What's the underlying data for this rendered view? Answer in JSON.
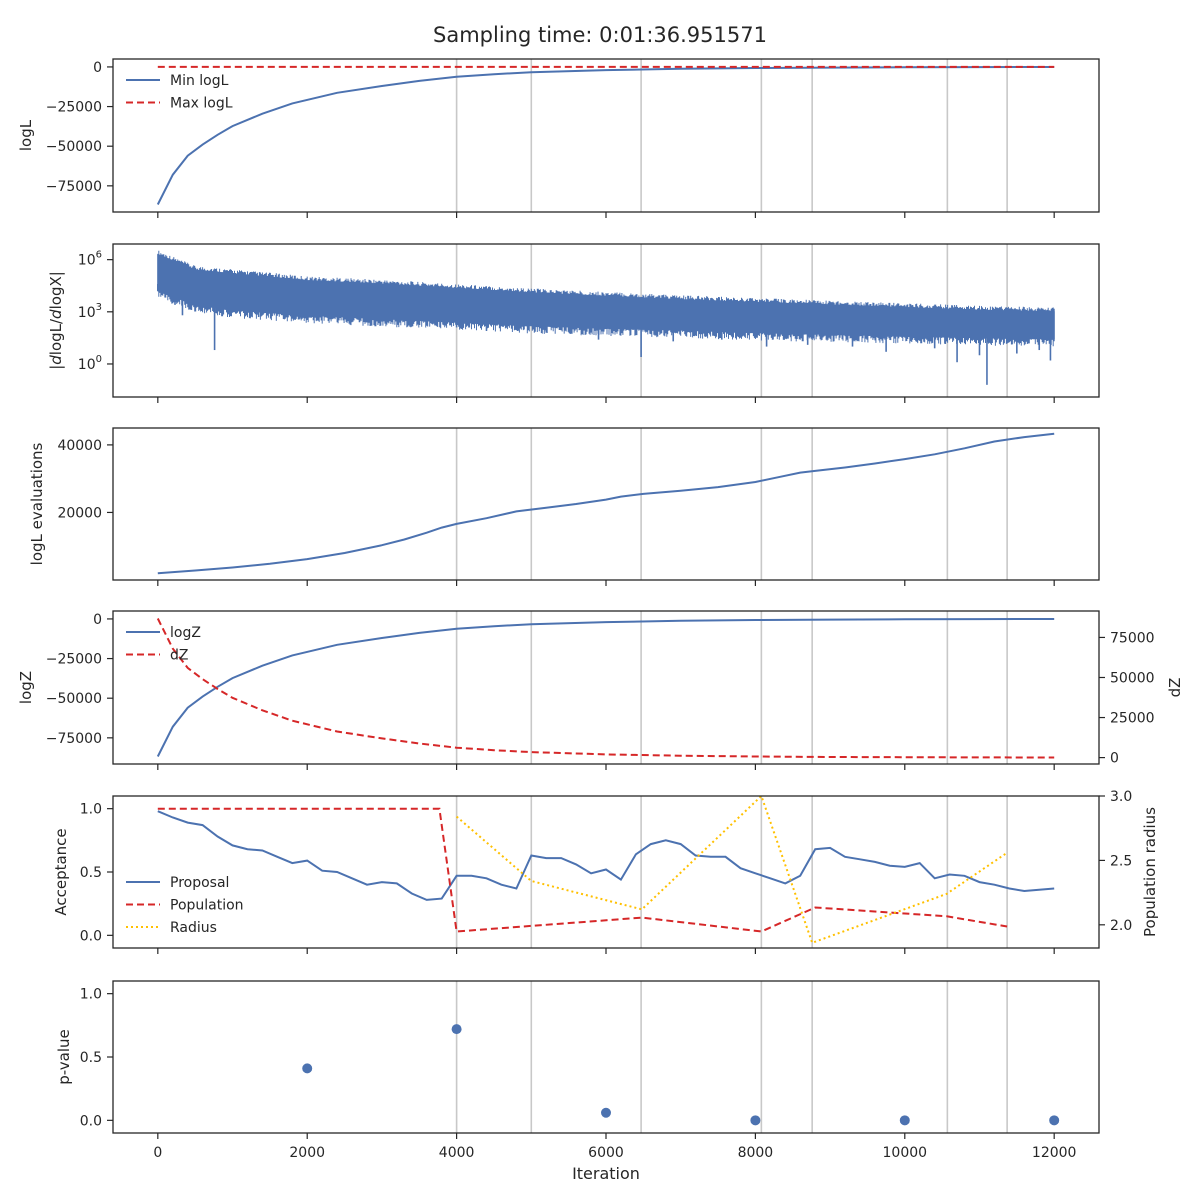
{
  "suptitle": "Sampling time: 0:01:36.951571",
  "colors": {
    "blue": "#4c72b0",
    "red": "#d62728",
    "gold": "#ffc000",
    "vline": "#c8c8c8",
    "axis": "#262626"
  },
  "x_axis": {
    "label": "Iteration",
    "range": [
      -600,
      12600
    ],
    "ticks": [
      0,
      2000,
      4000,
      6000,
      8000,
      10000,
      12000
    ],
    "tick_labels": [
      "0",
      "2000",
      "4000",
      "6000",
      "8000",
      "10000",
      "12000"
    ]
  },
  "vlines": [
    4000,
    5000,
    6470,
    8080,
    8760,
    10570,
    11370
  ],
  "chart_data": [
    {
      "type": "line",
      "id": "logl",
      "ylabel": "logL",
      "ylim": [
        -91500,
        5000
      ],
      "yticks": [
        0,
        -25000,
        -50000,
        -75000
      ],
      "ytick_labels": [
        "0",
        "−25000",
        "−50000",
        "−75000"
      ],
      "legend": {
        "position": "top-left",
        "entries": [
          "Min logL",
          "Max logL"
        ]
      },
      "series": [
        {
          "name": "Min logL",
          "style": "solid",
          "color": "blue",
          "x": [
            0,
            200,
            400,
            600,
            800,
            1000,
            1400,
            1800,
            2400,
            3000,
            3500,
            4000,
            4500,
            5000,
            6000,
            7000,
            8000,
            9000,
            10000,
            11000,
            12000
          ],
          "y": [
            -86800,
            -68000,
            -56000,
            -49000,
            -42800,
            -37300,
            -29500,
            -23000,
            -16300,
            -12000,
            -8800,
            -6200,
            -4600,
            -3400,
            -2000,
            -1200,
            -700,
            -400,
            -230,
            -120,
            -50
          ]
        },
        {
          "name": "Max logL",
          "style": "dashed",
          "color": "red",
          "x": [
            0,
            12000
          ],
          "y": [
            0,
            0
          ]
        }
      ]
    },
    {
      "type": "line",
      "id": "dlogl",
      "ylabel": "|dlogL/dlogX|",
      "yscale": "log",
      "ylim_log10": [
        -1.9,
        6.9
      ],
      "yticks_log10": [
        0,
        3,
        6
      ],
      "ytick_bases": [
        "10",
        "10",
        "10"
      ],
      "ytick_exps": [
        "0",
        "3",
        "6"
      ],
      "series": [
        {
          "name": "|dlogL/dlogX|",
          "style": "solid",
          "color": "blue",
          "envelope": true,
          "x": [
            0,
            500,
            1000,
            2000,
            3000,
            4000,
            5000,
            6000,
            7000,
            8000,
            9000,
            10000,
            11000,
            12000
          ],
          "upper_log10": [
            6.3,
            5.4,
            5.2,
            4.8,
            4.6,
            4.35,
            4.1,
            3.9,
            3.7,
            3.55,
            3.4,
            3.25,
            3.1,
            3.0
          ],
          "lower_log10": [
            4.2,
            3.4,
            3.1,
            2.8,
            2.6,
            2.4,
            2.2,
            2.05,
            1.95,
            1.8,
            1.7,
            1.6,
            1.5,
            1.45
          ],
          "spikes": [
            [
              0,
              4.6
            ],
            [
              230,
              3.4
            ],
            [
              330,
              2.8
            ],
            [
              760,
              0.8
            ],
            [
              1350,
              2.7
            ],
            [
              1900,
              2.6
            ],
            [
              2700,
              2.4
            ],
            [
              3200,
              2.5
            ],
            [
              4000,
              2.1
            ],
            [
              4400,
              1.9
            ],
            [
              5200,
              1.8
            ],
            [
              5900,
              1.4
            ],
            [
              6470,
              0.4
            ],
            [
              6900,
              1.3
            ],
            [
              7550,
              1.4
            ],
            [
              8150,
              1.0
            ],
            [
              8700,
              1.1
            ],
            [
              9300,
              1.0
            ],
            [
              9750,
              0.7
            ],
            [
              10400,
              0.9
            ],
            [
              10700,
              0.1
            ],
            [
              11000,
              0.5
            ],
            [
              11100,
              -1.2
            ],
            [
              11500,
              0.6
            ],
            [
              11800,
              0.8
            ],
            [
              11950,
              0.2
            ]
          ]
        }
      ]
    },
    {
      "type": "line",
      "id": "evals",
      "ylabel": "logL evaluations",
      "ylim": [
        0,
        45000
      ],
      "yticks": [
        20000,
        40000
      ],
      "ytick_labels": [
        "20000",
        "40000"
      ],
      "series": [
        {
          "name": "logL evaluations",
          "style": "solid",
          "color": "blue",
          "x": [
            0,
            500,
            1000,
            1500,
            2000,
            2500,
            3000,
            3300,
            3600,
            3800,
            4000,
            4400,
            4800,
            5200,
            5600,
            6000,
            6200,
            6500,
            7000,
            7500,
            8000,
            8300,
            8600,
            8800,
            9200,
            9600,
            10000,
            10400,
            10800,
            11200,
            11600,
            12000
          ],
          "y": [
            2000,
            2800,
            3700,
            4800,
            6200,
            8000,
            10300,
            12000,
            14000,
            15500,
            16600,
            18300,
            20300,
            21400,
            22500,
            23800,
            24700,
            25500,
            26400,
            27500,
            29000,
            30400,
            31800,
            32300,
            33300,
            34500,
            35800,
            37200,
            39000,
            41000,
            42300,
            43300
          ]
        }
      ]
    },
    {
      "type": "line",
      "id": "logz",
      "ylabel": "logZ",
      "ylabel_right": "dZ",
      "ylim": [
        -91500,
        5000
      ],
      "yticks": [
        0,
        -25000,
        -50000,
        -75000
      ],
      "ytick_labels": [
        "0",
        "−25000",
        "−50000",
        "−75000"
      ],
      "ylim_right": [
        -4000,
        91500
      ],
      "yticks_right": [
        0,
        25000,
        50000,
        75000
      ],
      "ytick_labels_right": [
        "0",
        "25000",
        "50000",
        "75000"
      ],
      "legend": {
        "position": "top-left",
        "entries": [
          "logZ",
          "dZ"
        ]
      },
      "series": [
        {
          "name": "logZ",
          "style": "solid",
          "color": "blue",
          "axis": "left",
          "x": [
            0,
            200,
            400,
            600,
            800,
            1000,
            1400,
            1800,
            2400,
            3000,
            3500,
            4000,
            4500,
            5000,
            6000,
            7000,
            8000,
            9000,
            10000,
            11000,
            12000
          ],
          "y": [
            -86800,
            -68000,
            -56000,
            -49000,
            -42800,
            -37300,
            -29500,
            -23000,
            -16300,
            -12000,
            -8800,
            -6200,
            -4600,
            -3400,
            -2000,
            -1200,
            -700,
            -400,
            -230,
            -120,
            -50
          ]
        },
        {
          "name": "dZ",
          "style": "dashed",
          "color": "red",
          "axis": "right",
          "x": [
            0,
            200,
            400,
            600,
            800,
            1000,
            1400,
            1800,
            2400,
            3000,
            3500,
            4000,
            4500,
            5000,
            6000,
            7000,
            8000,
            9000,
            10000,
            11000,
            12000
          ],
          "y": [
            86800,
            68000,
            56000,
            49000,
            42800,
            37300,
            29500,
            23000,
            16300,
            12000,
            8800,
            6200,
            4600,
            3400,
            2000,
            1200,
            700,
            400,
            230,
            120,
            50
          ]
        }
      ]
    },
    {
      "type": "line",
      "id": "accept",
      "ylabel": "Acceptance",
      "ylabel_right": "Population radius",
      "ylim": [
        -0.1,
        1.1
      ],
      "yticks": [
        0,
        0.5,
        1
      ],
      "ytick_labels": [
        "0.0",
        "0.5",
        "1.0"
      ],
      "ylim_right": [
        1.82,
        3.0
      ],
      "yticks_right": [
        2.0,
        2.5,
        3.0
      ],
      "ytick_labels_right": [
        "2.0",
        "2.5",
        "3.0"
      ],
      "legend": {
        "position": "center-left",
        "entries": [
          "Proposal",
          "Population",
          "Radius"
        ]
      },
      "series": [
        {
          "name": "Proposal",
          "style": "solid",
          "color": "blue",
          "axis": "left",
          "x": [
            0,
            200,
            400,
            600,
            800,
            1000,
            1200,
            1400,
            1600,
            1800,
            2000,
            2200,
            2400,
            2600,
            2800,
            3000,
            3200,
            3400,
            3600,
            3800,
            4000,
            4200,
            4400,
            4600,
            4800,
            5000,
            5200,
            5400,
            5600,
            5800,
            6000,
            6200,
            6400,
            6600,
            6800,
            7000,
            7200,
            7400,
            7600,
            7800,
            8000,
            8200,
            8400,
            8600,
            8800,
            9000,
            9200,
            9400,
            9600,
            9800,
            10000,
            10200,
            10400,
            10600,
            10800,
            11000,
            11200,
            11400,
            11600,
            11800,
            12000
          ],
          "y": [
            0.98,
            0.93,
            0.89,
            0.87,
            0.78,
            0.71,
            0.68,
            0.67,
            0.62,
            0.57,
            0.59,
            0.51,
            0.5,
            0.45,
            0.4,
            0.42,
            0.41,
            0.33,
            0.28,
            0.29,
            0.47,
            0.47,
            0.45,
            0.4,
            0.37,
            0.63,
            0.61,
            0.61,
            0.56,
            0.49,
            0.52,
            0.44,
            0.64,
            0.72,
            0.75,
            0.72,
            0.63,
            0.62,
            0.62,
            0.53,
            0.49,
            0.45,
            0.41,
            0.47,
            0.68,
            0.69,
            0.62,
            0.6,
            0.58,
            0.55,
            0.54,
            0.57,
            0.45,
            0.48,
            0.47,
            0.42,
            0.4,
            0.37,
            0.35,
            0.36,
            0.37
          ]
        },
        {
          "name": "Population",
          "style": "dashed",
          "color": "red",
          "axis": "left",
          "x": [
            0,
            3770,
            4000,
            6480,
            8080,
            8800,
            10560,
            11370
          ],
          "y": [
            1.0,
            1.0,
            0.03,
            0.14,
            0.03,
            0.22,
            0.15,
            0.07
          ]
        },
        {
          "name": "Radius",
          "style": "dotted",
          "color": "gold",
          "axis": "right",
          "x": [
            4000,
            5000,
            6480,
            8080,
            8760,
            10560,
            11370
          ],
          "y": [
            2.84,
            2.34,
            2.12,
            3.0,
            1.86,
            2.24,
            2.56
          ]
        }
      ]
    },
    {
      "type": "scatter",
      "id": "pvalue",
      "ylabel": "p-value",
      "ylim": [
        -0.1,
        1.1
      ],
      "yticks": [
        0,
        0.5,
        1
      ],
      "ytick_labels": [
        "0.0",
        "0.5",
        "1.0"
      ],
      "series": [
        {
          "name": "p-value",
          "color": "blue",
          "x": [
            2000,
            4000,
            6000,
            8000,
            10000,
            12000
          ],
          "y": [
            0.41,
            0.72,
            0.06,
            0.0,
            0.0,
            0.0
          ]
        }
      ]
    }
  ]
}
